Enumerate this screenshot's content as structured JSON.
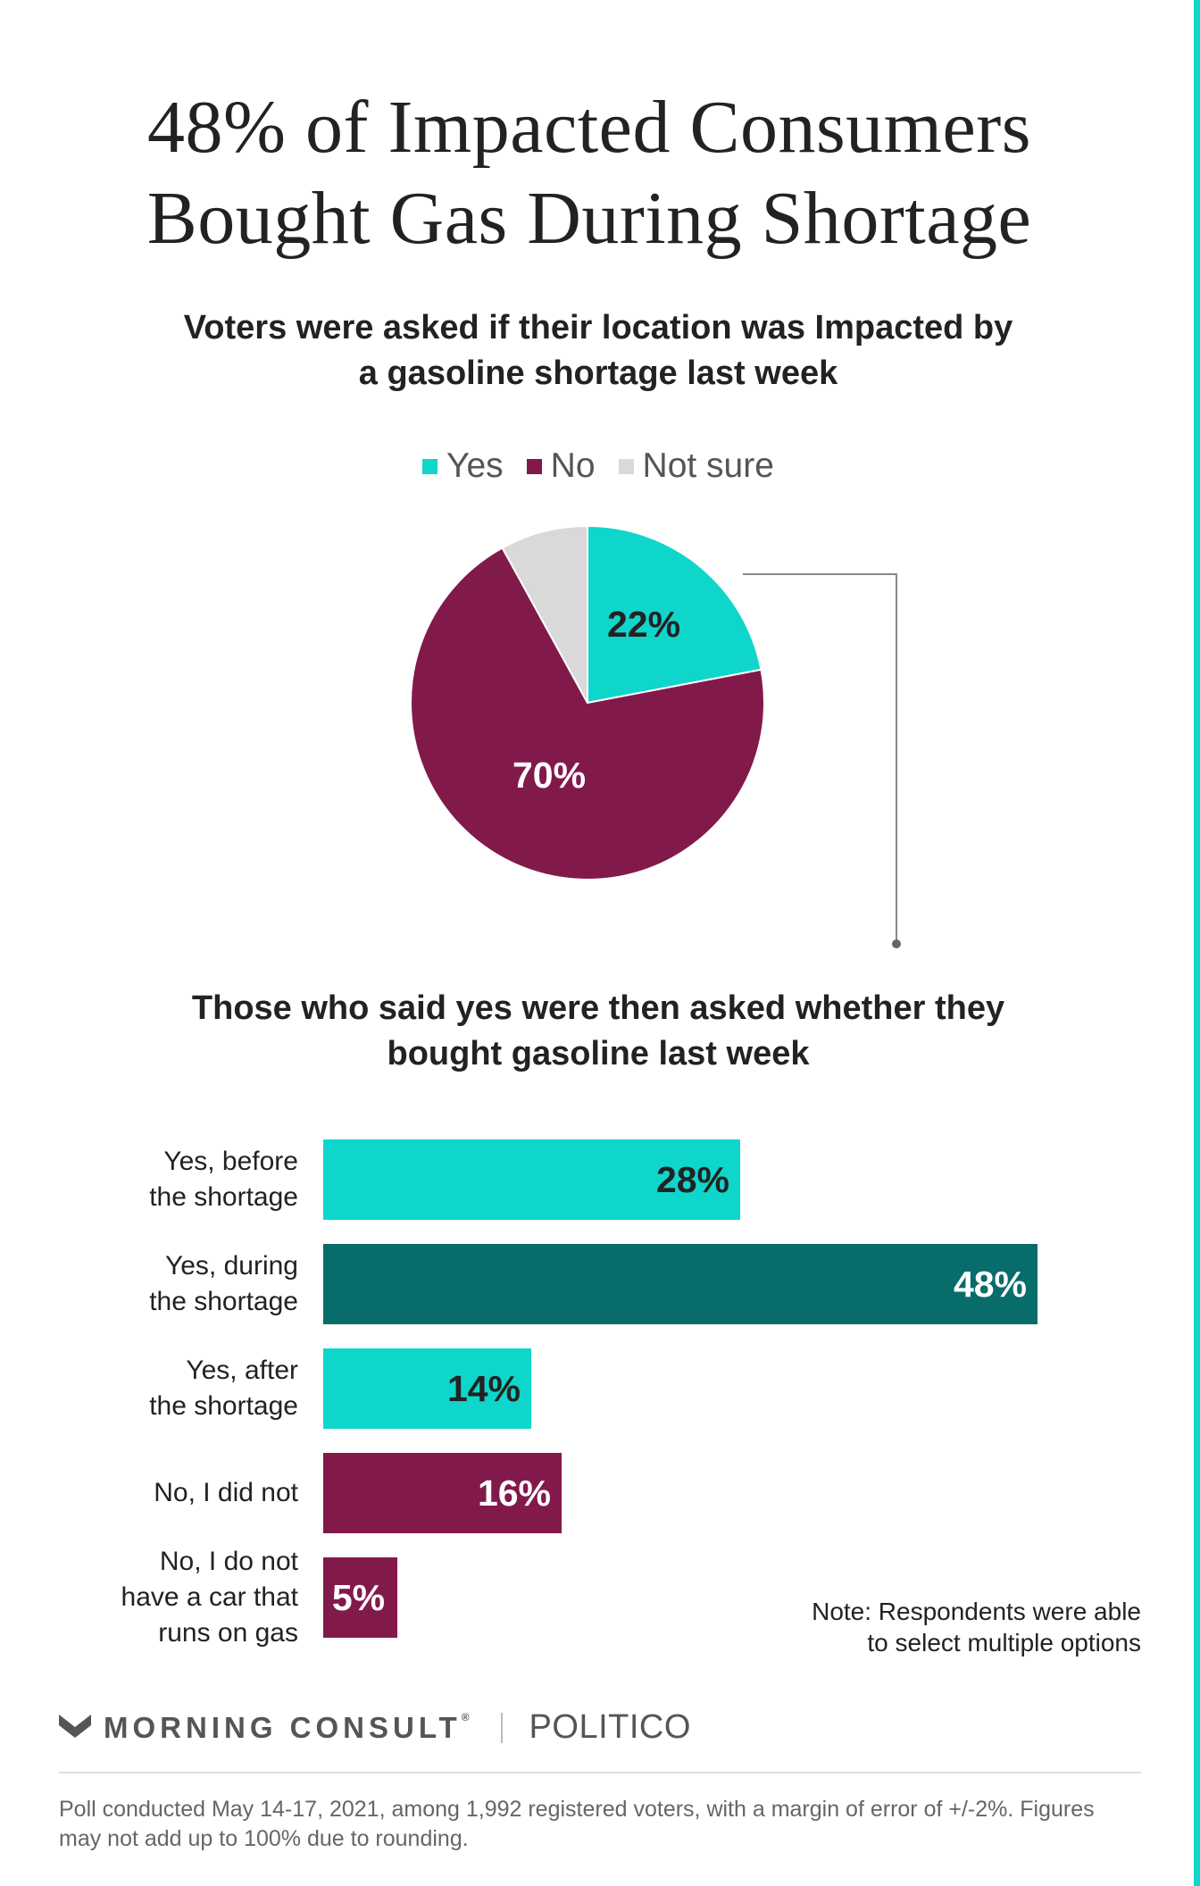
{
  "title_lines": [
    "48% of Impacted Consumers",
    "Bought Gas During Shortage"
  ],
  "pie_subtitle_lines": [
    "Voters were asked if their location was Impacted by",
    "a gasoline shortage last week"
  ],
  "bar_subtitle_lines": [
    "Those who said yes were then asked whether they",
    "bought gasoline last week"
  ],
  "colors": {
    "teal": "#0fd6cb",
    "dark_teal": "#086c6a",
    "maroon": "#82194b",
    "gray": "#d9d9d9",
    "text": "#222222"
  },
  "chart_data": [
    {
      "type": "pie",
      "legend_position": "top",
      "slices": [
        {
          "label": "Yes",
          "value": 22,
          "data_label": "22%",
          "color": "#0fd6cb",
          "label_color": "#222222"
        },
        {
          "label": "No",
          "value": 70,
          "data_label": "70%",
          "color": "#82194b",
          "label_color": "#ffffff"
        },
        {
          "label": "Not sure",
          "value": 8,
          "data_label": "",
          "color": "#d9d9d9",
          "label_color": "#222222"
        }
      ]
    },
    {
      "type": "bar",
      "orientation": "horizontal",
      "xlim": [
        0,
        48
      ],
      "categories": [
        "Yes, before\nthe  shortage",
        "Yes, during\nthe shortage",
        "Yes, after\nthe shortage",
        "No, I did not",
        "No, I do not\nhave a car that\nruns on gas"
      ],
      "values": [
        28,
        48,
        14,
        16,
        5
      ],
      "data_labels": [
        "28%",
        "48%",
        "14%",
        "16%",
        "5%"
      ],
      "colors": [
        "#0fd6cb",
        "#086c6a",
        "#0fd6cb",
        "#82194b",
        "#82194b"
      ],
      "label_colors": [
        "#222222",
        "#ffffff",
        "#222222",
        "#ffffff",
        "#ffffff"
      ]
    }
  ],
  "note_lines": [
    "Note: Respondents were able",
    "to select multiple options"
  ],
  "logos": {
    "morning_consult": "MORNING CONSULT",
    "registered_mark": "®",
    "politico": "POLITICO"
  },
  "footer_lines": [
    "Poll conducted May 14-17, 2021, among 1,992 registered voters, with a margin of error of +/-2%. Figures",
    "may not add up to 100% due to rounding."
  ]
}
